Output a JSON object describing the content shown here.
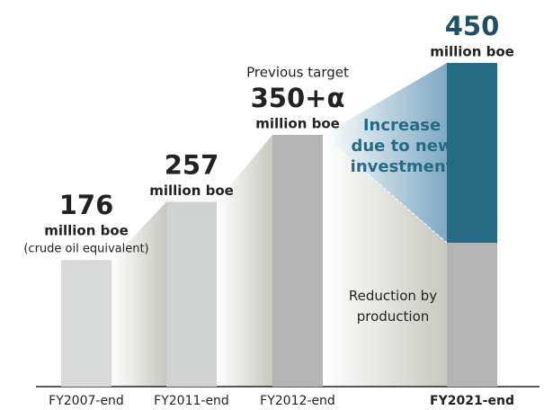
{
  "chart_data": {
    "type": "bar",
    "categories": [
      "FY2007-end",
      "FY2011-end",
      "FY2012-end",
      "FY2021-end"
    ],
    "values": [
      176,
      257,
      350,
      450
    ],
    "value_labels": [
      "176",
      "257",
      "350+α",
      "450"
    ],
    "unit": "million boe",
    "notes": [
      "(crude oil equivalent)",
      null,
      "Previous target",
      null
    ],
    "colors": [
      "#d8dada",
      "#d0d2d2",
      "#b4b4b4",
      "#b4b4b4"
    ],
    "highlight_index": 3,
    "highlight_color": "#266b85",
    "annotations": [
      {
        "text": "Reduction by production",
        "value": 200
      },
      {
        "text": "Increase due to new investment"
      }
    ]
  }
}
